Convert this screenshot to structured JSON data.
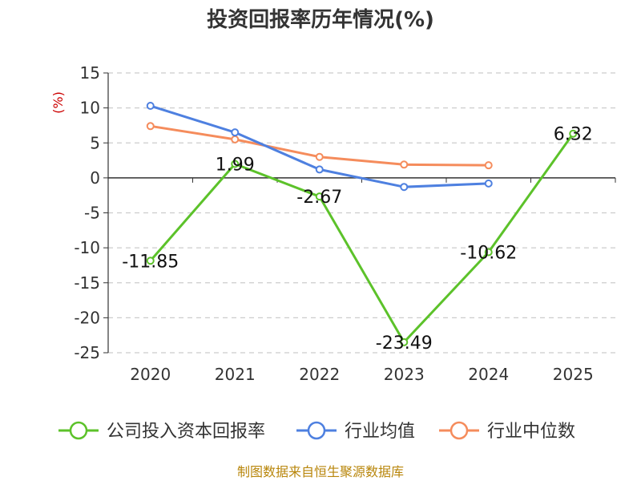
{
  "chart_data": {
    "type": "line",
    "title": "投资回报率历年情况(%)",
    "ylabel": "(%)",
    "categories": [
      "2020",
      "2021",
      "2022",
      "2023",
      "2024",
      "2025"
    ],
    "yticks": [
      "15",
      "10",
      "5",
      "0",
      "-5",
      "-10",
      "-15",
      "-20",
      "-25"
    ],
    "ylim": [
      -25,
      15
    ],
    "grid": true,
    "legend_position": "bottom",
    "series": [
      {
        "name": "公司投入资本回报率",
        "color": "#5cc22a",
        "values": [
          -11.85,
          1.99,
          -2.67,
          -23.49,
          -10.62,
          6.32
        ],
        "labels": [
          "-11.85",
          "1.99",
          "-2.67",
          "-23.49",
          "-10.62",
          "6.32"
        ]
      },
      {
        "name": "行业均值",
        "color": "#4e80e0",
        "values": [
          10.3,
          6.5,
          1.2,
          -1.3,
          -0.8,
          null
        ]
      },
      {
        "name": "行业中位数",
        "color": "#f58c5c",
        "values": [
          7.4,
          5.5,
          3.0,
          1.9,
          1.8,
          null
        ]
      }
    ],
    "source": "制图数据来自恒生聚源数据库"
  }
}
